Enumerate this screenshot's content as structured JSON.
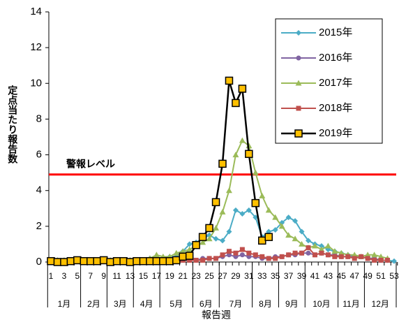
{
  "chart_data": {
    "type": "line",
    "y_label": "定点当たり報告数",
    "x_label": "報告週",
    "categories": [
      1,
      null,
      3,
      null,
      5,
      null,
      7,
      null,
      9,
      null,
      11,
      null,
      13,
      null,
      15,
      null,
      17,
      null,
      19,
      null,
      21,
      null,
      23,
      null,
      25,
      null,
      27,
      null,
      29,
      null,
      31,
      null,
      33,
      null,
      35,
      null,
      37,
      null,
      39,
      null,
      41,
      null,
      43,
      null,
      45,
      null,
      47,
      null,
      49,
      null,
      51,
      null,
      53
    ],
    "months": [
      "1月",
      "2月",
      "3月",
      "4月",
      "5月",
      "6月",
      "7月",
      "8月",
      "9月",
      "10月",
      "11月",
      "12月"
    ],
    "month_start_weeks": [
      1,
      6,
      10,
      14,
      18,
      23,
      27,
      32,
      36,
      40,
      45,
      49
    ],
    "ylim": [
      0,
      14
    ],
    "yticks": [
      0,
      2,
      4,
      6,
      8,
      10,
      12,
      14
    ],
    "threshold": {
      "value": 4.9,
      "label": "警報レベル",
      "color": "#ff0000"
    },
    "legend": "upper right",
    "series": [
      {
        "name": "2015年",
        "color": "#4bacc6",
        "marker": "diamond",
        "values": [
          0.1,
          0.1,
          0.1,
          0.1,
          0.1,
          0.1,
          0.1,
          0.1,
          0.1,
          0.1,
          0.1,
          0.1,
          0.1,
          0.1,
          0.1,
          0.2,
          0.2,
          0.2,
          0.3,
          0.3,
          0.6,
          1.0,
          1.1,
          1.3,
          1.5,
          1.3,
          1.2,
          1.7,
          2.9,
          2.7,
          2.9,
          2.5,
          1.4,
          1.7,
          1.8,
          2.2,
          2.5,
          2.3,
          1.7,
          1.2,
          1.0,
          0.9,
          0.7,
          0.6,
          0.5,
          0.4,
          0.35,
          0.3,
          0.2,
          0.15,
          0.1,
          0.1,
          0.05
        ]
      },
      {
        "name": "2016年",
        "color": "#8064a2",
        "marker": "circle",
        "values": [
          0.1,
          0.1,
          0.1,
          0.1,
          0.1,
          0.1,
          0.1,
          0.1,
          0.1,
          0.1,
          0.1,
          0.1,
          0.1,
          0.1,
          0.1,
          0.1,
          0.1,
          0.1,
          0.1,
          0.1,
          0.1,
          0.1,
          0.1,
          0.2,
          0.2,
          0.2,
          0.3,
          0.4,
          0.3,
          0.4,
          0.3,
          0.3,
          0.2,
          0.2,
          0.3,
          0.3,
          0.4,
          0.4,
          0.5,
          0.5,
          0.4,
          0.5,
          0.4,
          0.4,
          0.3,
          0.3,
          0.3,
          0.3,
          0.2,
          0.2,
          0.1,
          0.1,
          null
        ]
      },
      {
        "name": "2017年",
        "color": "#9bbb59",
        "marker": "triangle",
        "values": [
          0.1,
          0.1,
          0.1,
          0.1,
          0.1,
          0.1,
          0.1,
          0.1,
          0.1,
          0.1,
          0.1,
          0.1,
          0.1,
          0.1,
          0.1,
          0.2,
          0.4,
          0.3,
          0.3,
          0.5,
          0.6,
          0.7,
          0.9,
          1.1,
          1.3,
          1.9,
          2.8,
          4.0,
          6.0,
          6.8,
          6.5,
          5.0,
          3.7,
          2.9,
          2.5,
          2.0,
          1.5,
          1.3,
          1.0,
          0.8,
          0.9,
          0.7,
          0.9,
          0.6,
          0.5,
          0.4,
          0.4,
          0.3,
          0.4,
          0.4,
          0.3,
          0.2,
          null
        ]
      },
      {
        "name": "2018年",
        "color": "#c0504d",
        "marker": "square",
        "values": [
          0.05,
          0.05,
          0.05,
          0.05,
          0.05,
          0.05,
          0.05,
          0.05,
          0.05,
          0.05,
          0.05,
          0.05,
          0.05,
          0.05,
          0.05,
          0.05,
          0.05,
          0.05,
          0.05,
          0.05,
          0.1,
          0.1,
          0.1,
          0.1,
          0.2,
          0.2,
          0.4,
          0.6,
          0.5,
          0.7,
          0.5,
          0.4,
          0.3,
          0.2,
          0.2,
          0.3,
          0.4,
          0.5,
          0.5,
          0.8,
          0.4,
          0.5,
          0.4,
          0.3,
          0.3,
          0.3,
          0.2,
          0.3,
          0.2,
          0.1,
          0.1,
          0.1,
          null
        ]
      },
      {
        "name": "2019年",
        "color": "#000000",
        "marker": "square-large",
        "marker_fill": "#ffc000",
        "values": [
          0.05,
          0.0,
          0.0,
          0.05,
          0.1,
          0.05,
          0.05,
          0.05,
          0.1,
          0.0,
          0.05,
          0.05,
          0.0,
          0.05,
          0.05,
          0.05,
          0.05,
          0.05,
          0.05,
          0.1,
          0.3,
          0.35,
          0.95,
          1.4,
          1.9,
          3.35,
          5.5,
          10.15,
          8.9,
          9.7,
          6.05,
          3.3,
          1.2,
          1.4,
          null,
          null,
          null,
          null,
          null,
          null,
          null,
          null,
          null,
          null,
          null,
          null,
          null,
          null,
          null,
          null,
          null,
          null,
          null
        ]
      }
    ]
  }
}
